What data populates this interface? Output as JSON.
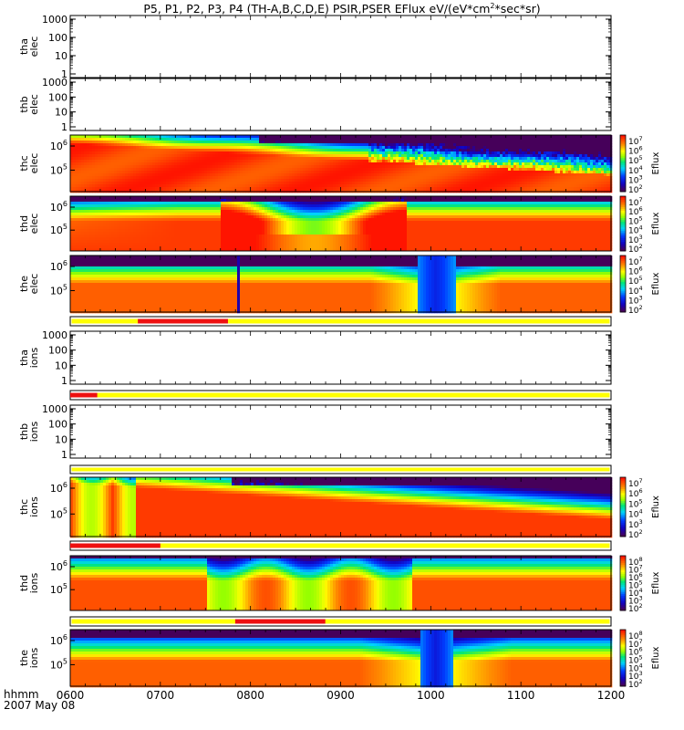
{
  "chart_data": {
    "type": "heatmap",
    "title": "P5, P1, P2, P3, P4 (TH-A,B,C,D,E) PSIR,PSER EFlux eV/(eV*cm²*sec*sr)",
    "title_parts": {
      "main": "P5, P1, P2, P3, P4 (TH-A,B,C,D,E) PSIR,PSER EFlux eV/(eV*cm",
      "sup": "2",
      "tail": "*sec*sr)"
    },
    "x_axis": {
      "unit_label": "hhmm",
      "date_label": "2007 May 08",
      "ticks": [
        "0600",
        "0700",
        "0800",
        "0900",
        "1000",
        "1100",
        "1200"
      ],
      "range_hours": [
        6,
        12
      ]
    },
    "colorbar_label": "Eflux",
    "colors": {
      "red": "#ff2000",
      "yellow": "#ffff00",
      "bar_red": "#ee1010",
      "bar_yellow": "#ffff00"
    },
    "panels": [
      {
        "id": "tha-elec",
        "ylabel": [
          "tha",
          "elec"
        ],
        "kind": "empty",
        "yticks": [
          "1000",
          "100",
          "10",
          "1"
        ]
      },
      {
        "id": "thb-elec",
        "ylabel": [
          "thb",
          "elec"
        ],
        "kind": "empty",
        "yticks": [
          "1000",
          "100",
          "10",
          "1"
        ]
      },
      {
        "id": "thc-elec",
        "ylabel": [
          "thc",
          "elec"
        ],
        "kind": "spec",
        "variant": "thc",
        "yticks": [
          {
            "base": "10",
            "exp": "6"
          },
          {
            "base": "10",
            "exp": "5"
          }
        ],
        "cbar_exps": [
          "7",
          "6",
          "5",
          "4",
          "3",
          "2"
        ]
      },
      {
        "id": "thd-elec",
        "ylabel": [
          "thd",
          "elec"
        ],
        "kind": "spec",
        "variant": "thd",
        "yticks": [
          {
            "base": "10",
            "exp": "6"
          },
          {
            "base": "10",
            "exp": "5"
          }
        ],
        "cbar_exps": [
          "7",
          "6",
          "5",
          "4",
          "3",
          "2"
        ]
      },
      {
        "id": "the-elec",
        "ylabel": [
          "the",
          "elec"
        ],
        "kind": "spec",
        "variant": "the",
        "yticks": [
          {
            "base": "10",
            "exp": "6"
          },
          {
            "base": "10",
            "exp": "5"
          }
        ],
        "cbar_exps": [
          "7",
          "6",
          "5",
          "4",
          "3",
          "2"
        ]
      },
      {
        "id": "tha-ions",
        "ylabel": [
          "tha",
          "ions"
        ],
        "kind": "empty",
        "yticks": [
          "1000",
          "100",
          "10",
          "1"
        ]
      },
      {
        "id": "thb-ions",
        "ylabel": [
          "thb",
          "ions"
        ],
        "kind": "empty",
        "yticks": [
          "1000",
          "100",
          "10",
          "1"
        ]
      },
      {
        "id": "thc-ions",
        "ylabel": [
          "thc",
          "ions"
        ],
        "kind": "spec",
        "variant": "thci",
        "yticks": [
          {
            "base": "10",
            "exp": "6"
          },
          {
            "base": "10",
            "exp": "5"
          }
        ],
        "cbar_exps": [
          "7",
          "6",
          "5",
          "4",
          "3",
          "2"
        ]
      },
      {
        "id": "thd-ions",
        "ylabel": [
          "thd",
          "ions"
        ],
        "kind": "spec",
        "variant": "thdi",
        "yticks": [
          {
            "base": "10",
            "exp": "6"
          },
          {
            "base": "10",
            "exp": "5"
          }
        ],
        "cbar_exps": [
          "8",
          "7",
          "6",
          "5",
          "4",
          "3",
          "2"
        ]
      },
      {
        "id": "the-ions",
        "ylabel": [
          "the",
          "ions"
        ],
        "kind": "spec",
        "variant": "thei",
        "yticks": [
          {
            "base": "10",
            "exp": "6"
          },
          {
            "base": "10",
            "exp": "5"
          }
        ],
        "cbar_exps": [
          "8",
          "7",
          "6",
          "5",
          "4",
          "3",
          "2"
        ]
      }
    ],
    "mode_bars": [
      {
        "id": "bar-1",
        "red_hours": [
          [
            6.75,
            7.75
          ]
        ]
      },
      {
        "id": "bar-2",
        "red_hours": [
          [
            6.0,
            6.3
          ]
        ]
      },
      {
        "id": "bar-3",
        "red_hours": []
      },
      {
        "id": "bar-4",
        "red_hours": [
          [
            6.0,
            7.0
          ]
        ]
      },
      {
        "id": "bar-5",
        "red_hours": [
          [
            7.83,
            8.83
          ]
        ]
      }
    ]
  }
}
